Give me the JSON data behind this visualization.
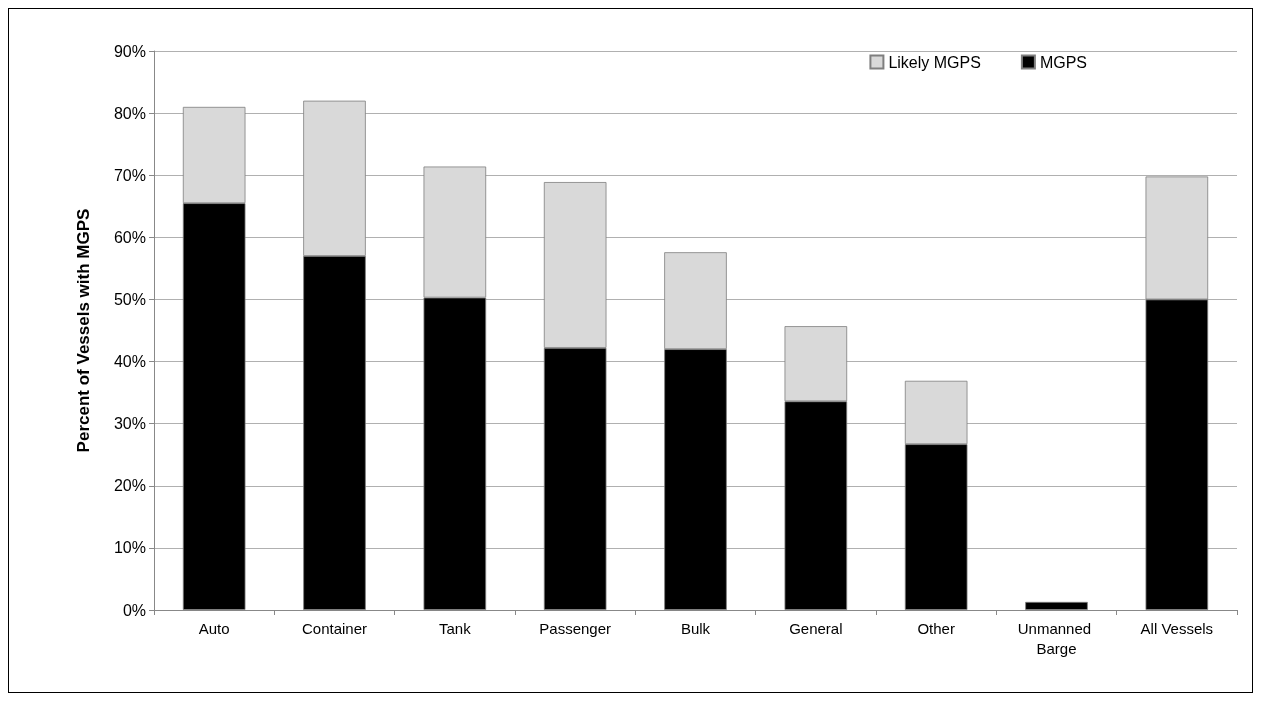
{
  "chart_data": {
    "type": "bar",
    "stacked": true,
    "ylabel": "Percent of Vessels with MGPS",
    "categories": [
      "Auto",
      "Container",
      "Tank",
      "Passenger",
      "Bulk",
      "General",
      "Other",
      "Unmanned Barge",
      "All Vessels"
    ],
    "series": [
      {
        "name": "MGPS",
        "color": "#000000",
        "values": [
          65.5,
          57,
          50.3,
          42.2,
          42,
          33.6,
          26.7,
          1.3,
          50
        ]
      },
      {
        "name": "Likely MGPS",
        "color": "#d9d9d9",
        "values": [
          15.5,
          25,
          21.1,
          26.7,
          15.6,
          12.1,
          10.2,
          0,
          19.8
        ]
      }
    ],
    "ylim": [
      0,
      90
    ],
    "yticks": [
      {
        "value": 0,
        "label": "0%"
      },
      {
        "value": 10,
        "label": "10%"
      },
      {
        "value": 20,
        "label": "20%"
      },
      {
        "value": 30,
        "label": "30%"
      },
      {
        "value": 40,
        "label": "40%"
      },
      {
        "value": 50,
        "label": "50%"
      },
      {
        "value": 60,
        "label": "60%"
      },
      {
        "value": 70,
        "label": "70%"
      },
      {
        "value": 80,
        "label": "80%"
      },
      {
        "value": 90,
        "label": "90%"
      }
    ],
    "grid": "y",
    "legend": "top right"
  }
}
